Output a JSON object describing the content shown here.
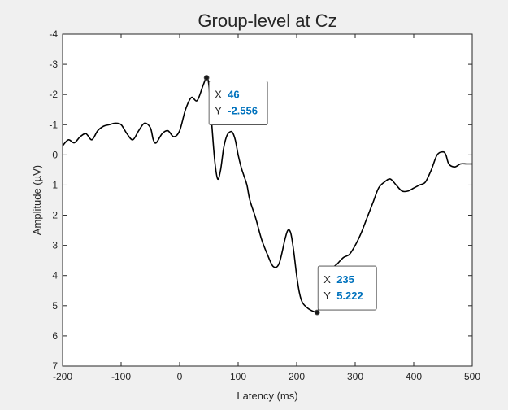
{
  "chart_data": {
    "type": "line",
    "title": "Group-level at Cz",
    "xlabel": "Latency (ms)",
    "ylabel": "Amplitude (µV)",
    "xlim": [
      -200,
      500
    ],
    "ylim": [
      -4,
      7
    ],
    "y_reversed": true,
    "grid": false,
    "x_ticks": [
      -200,
      -100,
      0,
      100,
      200,
      300,
      400,
      500
    ],
    "y_ticks": [
      -4,
      -3,
      -2,
      -1,
      0,
      1,
      2,
      3,
      4,
      5,
      6,
      7
    ],
    "x_tick_labels": [
      "-200",
      "-100",
      "0",
      "100",
      "200",
      "300",
      "400",
      "500"
    ],
    "y_tick_labels": [
      "-4",
      "-3",
      "-2",
      "-1",
      "0",
      "1",
      "2",
      "3",
      "4",
      "5",
      "6",
      "7"
    ],
    "line_color": "#000000",
    "series": [
      {
        "x": [
          -200,
          -190,
          -180,
          -170,
          -160,
          -150,
          -140,
          -130,
          -120,
          -110,
          -100,
          -90,
          -80,
          -70,
          -60,
          -50,
          -45,
          -40,
          -30,
          -20,
          -10,
          0,
          10,
          20,
          30,
          40,
          46,
          50,
          55,
          60,
          65,
          70,
          75,
          80,
          85,
          90,
          95,
          100,
          105,
          110,
          115,
          120,
          130,
          140,
          150,
          160,
          170,
          180,
          185,
          190,
          195,
          200,
          205,
          210,
          220,
          230,
          235,
          240,
          250,
          260,
          270,
          280,
          290,
          300,
          310,
          320,
          330,
          340,
          350,
          360,
          370,
          380,
          390,
          400,
          410,
          420,
          430,
          440,
          450,
          455,
          460,
          470,
          480,
          490,
          500
        ],
        "y": [
          -0.3,
          -0.5,
          -0.4,
          -0.6,
          -0.7,
          -0.5,
          -0.8,
          -0.95,
          -1.0,
          -1.05,
          -1.0,
          -0.7,
          -0.5,
          -0.8,
          -1.05,
          -0.9,
          -0.5,
          -0.4,
          -0.7,
          -0.8,
          -0.6,
          -0.8,
          -1.5,
          -1.9,
          -1.8,
          -2.3,
          -2.556,
          -2.3,
          -1.0,
          0.2,
          0.8,
          0.5,
          -0.2,
          -0.6,
          -0.75,
          -0.75,
          -0.5,
          0.0,
          0.4,
          0.7,
          1.0,
          1.5,
          2.1,
          2.8,
          3.3,
          3.7,
          3.6,
          2.8,
          2.5,
          2.6,
          3.2,
          4.0,
          4.6,
          4.9,
          5.1,
          5.2,
          5.222,
          5.0,
          4.3,
          3.8,
          3.6,
          3.4,
          3.3,
          3.0,
          2.6,
          2.1,
          1.6,
          1.1,
          0.9,
          0.8,
          1.0,
          1.2,
          1.2,
          1.1,
          1.0,
          0.9,
          0.5,
          0.0,
          -0.1,
          0.0,
          0.3,
          0.4,
          0.3,
          0.3,
          0.3
        ]
      }
    ],
    "datatips": [
      {
        "x_label": "X",
        "x_value": "46",
        "y_label": "Y",
        "y_value": "-2.556",
        "x": 46,
        "y": -2.556
      },
      {
        "x_label": "X",
        "x_value": "235",
        "y_label": "Y",
        "y_value": "5.222",
        "x": 235,
        "y": 5.222
      }
    ],
    "datatip_value_color": "#0072bd"
  }
}
